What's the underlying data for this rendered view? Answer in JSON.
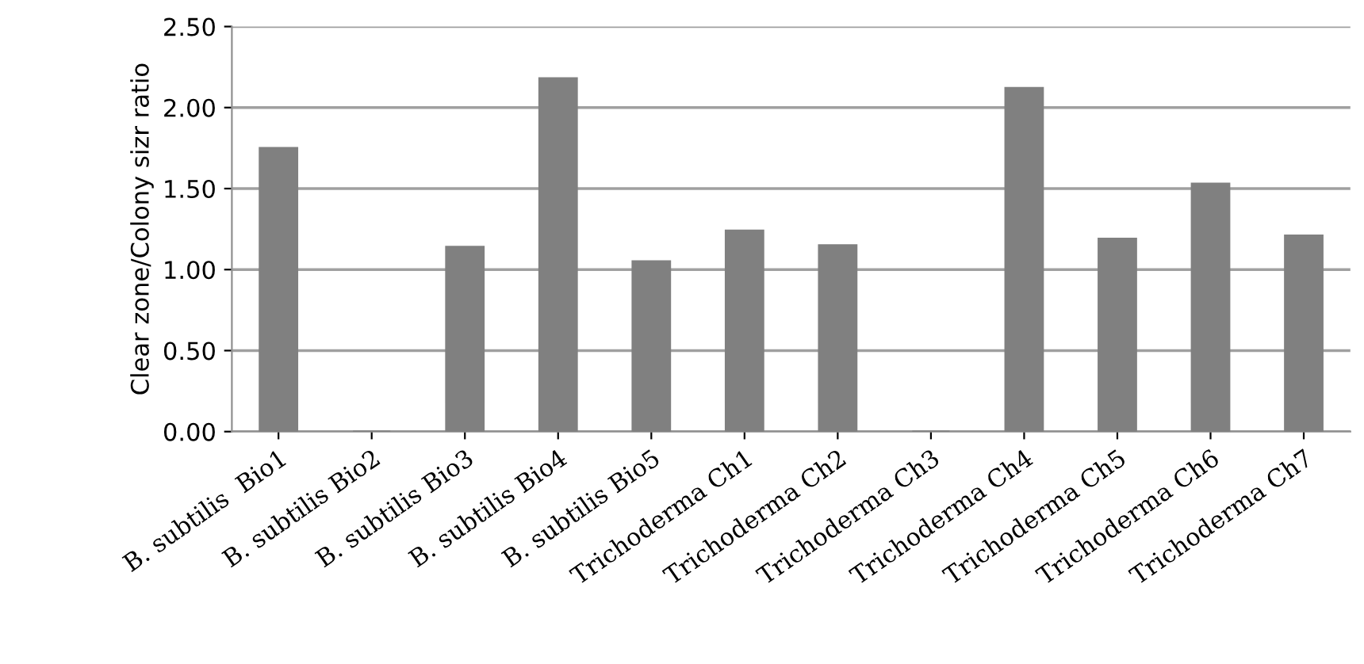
{
  "chart_data": {
    "type": "bar",
    "ylabel": "Clear zone/Colony sizr ratio",
    "categories": [
      "B. subtilis  Bio1",
      "B. subtilis Bio2",
      "B. subtilis Bio3",
      "B. subtilis Bio4",
      "B. subtilis Bio5",
      "Trichoderma Ch1",
      "Trichoderma Ch2",
      "Trichoderma Ch3",
      "Trichoderma Ch4",
      "Trichoderma Ch5",
      "Trichoderma Ch6",
      "Trichoderma Ch7"
    ],
    "values": [
      1.75,
      0,
      1.14,
      2.18,
      1.05,
      1.24,
      1.15,
      0,
      2.12,
      1.19,
      1.53,
      1.21
    ],
    "color": "#808080",
    "ylim": [
      0,
      2.5
    ],
    "yticks": [
      {
        "value": 0,
        "label": "0.00"
      },
      {
        "value": 0.5,
        "label": "0.50"
      },
      {
        "value": 1.0,
        "label": "1.00"
      },
      {
        "value": 1.5,
        "label": "1.50"
      },
      {
        "value": 2.0,
        "label": "2.00"
      },
      {
        "value": 2.5,
        "label": "2.50"
      }
    ],
    "grid": "y",
    "legend": false
  }
}
